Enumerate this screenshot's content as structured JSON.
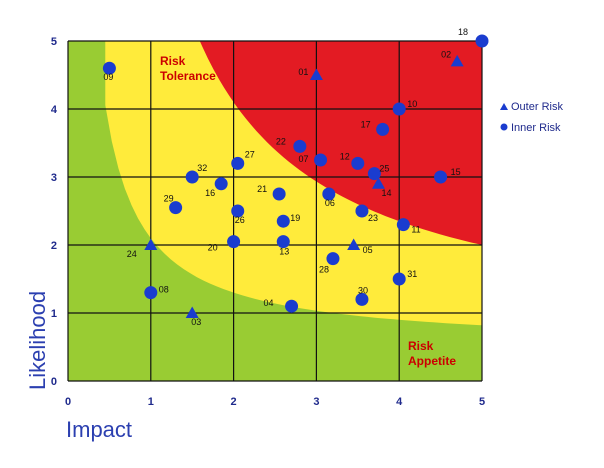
{
  "chart_data": {
    "type": "scatter",
    "xlabel": "Impact",
    "ylabel": "Likelihood",
    "xlim": [
      0,
      5
    ],
    "ylim": [
      0,
      5
    ],
    "xticks": [
      "0",
      "1",
      "2",
      "3",
      "4",
      "5"
    ],
    "yticks": [
      "0",
      "1",
      "2",
      "3",
      "4",
      "5"
    ],
    "grid": true,
    "legend_position": "right",
    "zones": [
      {
        "label": "Risk\nTolerance",
        "color": "#ffeb3b"
      },
      {
        "label": "Risk\nAppetite",
        "color": "#99cc33"
      },
      {
        "label": "",
        "color": "#e31b23"
      }
    ],
    "series": [
      {
        "name": "Outer Risk",
        "marker": "triangle",
        "color": "#1a3ccf",
        "points": [
          {
            "id": "01",
            "x": 3.0,
            "y": 4.5
          },
          {
            "id": "02",
            "x": 4.7,
            "y": 4.7
          },
          {
            "id": "03",
            "x": 1.5,
            "y": 1.0
          },
          {
            "id": "05",
            "x": 3.45,
            "y": 2.0
          },
          {
            "id": "14",
            "x": 3.75,
            "y": 2.9
          },
          {
            "id": "24",
            "x": 1.0,
            "y": 2.0
          }
        ]
      },
      {
        "name": "Inner Risk",
        "marker": "circle",
        "color": "#1a3ccf",
        "points": [
          {
            "id": "04",
            "x": 2.7,
            "y": 1.1
          },
          {
            "id": "06",
            "x": 3.15,
            "y": 2.75
          },
          {
            "id": "07",
            "x": 3.05,
            "y": 3.25
          },
          {
            "id": "08",
            "x": 1.0,
            "y": 1.3
          },
          {
            "id": "09",
            "x": 0.5,
            "y": 4.6
          },
          {
            "id": "10",
            "x": 4.0,
            "y": 4.0
          },
          {
            "id": "11",
            "x": 4.05,
            "y": 2.3
          },
          {
            "id": "12",
            "x": 3.5,
            "y": 3.2
          },
          {
            "id": "13",
            "x": 2.6,
            "y": 2.05
          },
          {
            "id": "15",
            "x": 4.5,
            "y": 3.0
          },
          {
            "id": "16",
            "x": 1.85,
            "y": 2.9
          },
          {
            "id": "17",
            "x": 3.8,
            "y": 3.7
          },
          {
            "id": "18",
            "x": 5.0,
            "y": 5.0
          },
          {
            "id": "19",
            "x": 2.6,
            "y": 2.35
          },
          {
            "id": "20",
            "x": 2.0,
            "y": 2.05
          },
          {
            "id": "21",
            "x": 2.55,
            "y": 2.75
          },
          {
            "id": "22",
            "x": 2.8,
            "y": 3.45
          },
          {
            "id": "23",
            "x": 3.55,
            "y": 2.5
          },
          {
            "id": "25",
            "x": 3.7,
            "y": 3.05
          },
          {
            "id": "26",
            "x": 2.05,
            "y": 2.5
          },
          {
            "id": "27",
            "x": 2.05,
            "y": 3.2
          },
          {
            "id": "28",
            "x": 3.2,
            "y": 1.8
          },
          {
            "id": "29",
            "x": 1.3,
            "y": 2.55
          },
          {
            "id": "30",
            "x": 3.55,
            "y": 1.2
          },
          {
            "id": "31",
            "x": 4.0,
            "y": 1.5
          },
          {
            "id": "32",
            "x": 1.5,
            "y": 3.0
          }
        ]
      }
    ]
  }
}
